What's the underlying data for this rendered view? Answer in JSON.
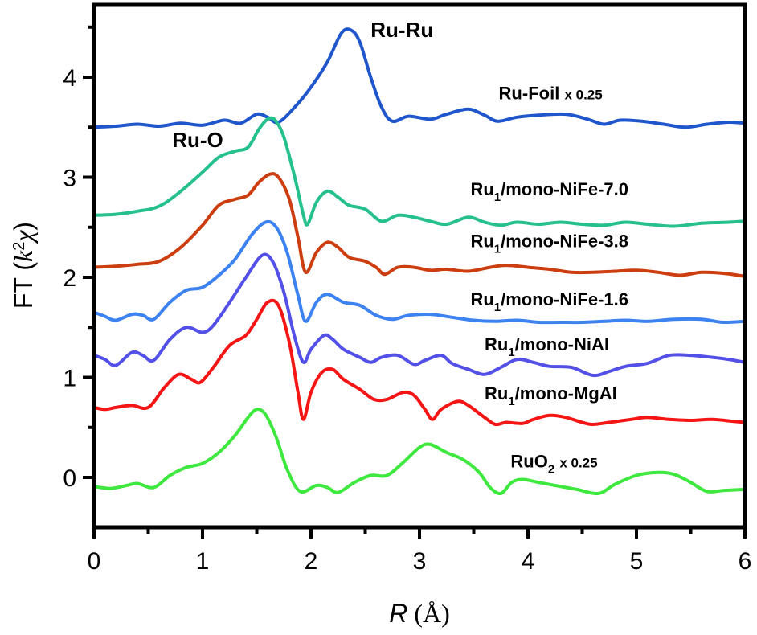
{
  "chart_data": {
    "type": "line",
    "title": "",
    "xlabel": "R (Å)",
    "ylabel": "FT (k²χ)",
    "xlim": [
      0,
      6
    ],
    "ylim": [
      -0.5,
      4.73
    ],
    "xticks": [
      0,
      1,
      2,
      3,
      4,
      5,
      6
    ],
    "yticks": [
      0,
      1,
      2,
      3,
      4
    ],
    "grid": false,
    "legend_position": "inline labels right",
    "annotations": [
      {
        "text": "Ru-Ru",
        "x": 2.55,
        "y": 4.4
      },
      {
        "text": "Ru-O",
        "x": 0.72,
        "y": 3.3
      }
    ],
    "series": [
      {
        "name": "Ru-Foil x 0.25",
        "label_main": "Ru-Foil",
        "label_sub": "",
        "label_suffix": " x 0.25",
        "color": "#1f56cc",
        "label_pos": [
          3.73,
          3.78
        ],
        "points": [
          [
            0,
            3.5
          ],
          [
            0.2,
            3.51
          ],
          [
            0.4,
            3.53
          ],
          [
            0.6,
            3.51
          ],
          [
            0.8,
            3.54
          ],
          [
            1.0,
            3.52
          ],
          [
            1.2,
            3.57
          ],
          [
            1.35,
            3.54
          ],
          [
            1.5,
            3.63
          ],
          [
            1.6,
            3.6
          ],
          [
            1.7,
            3.55
          ],
          [
            1.85,
            3.7
          ],
          [
            2.0,
            3.9
          ],
          [
            2.15,
            4.15
          ],
          [
            2.28,
            4.44
          ],
          [
            2.37,
            4.47
          ],
          [
            2.45,
            4.35
          ],
          [
            2.55,
            4.0
          ],
          [
            2.65,
            3.7
          ],
          [
            2.75,
            3.56
          ],
          [
            2.9,
            3.61
          ],
          [
            3.1,
            3.58
          ],
          [
            3.25,
            3.63
          ],
          [
            3.45,
            3.68
          ],
          [
            3.6,
            3.62
          ],
          [
            3.72,
            3.56
          ],
          [
            3.9,
            3.6
          ],
          [
            4.1,
            3.62
          ],
          [
            4.35,
            3.63
          ],
          [
            4.55,
            3.58
          ],
          [
            4.7,
            3.53
          ],
          [
            4.85,
            3.57
          ],
          [
            5.05,
            3.56
          ],
          [
            5.25,
            3.53
          ],
          [
            5.45,
            3.5
          ],
          [
            5.65,
            3.53
          ],
          [
            5.85,
            3.55
          ],
          [
            6.0,
            3.54
          ]
        ]
      },
      {
        "name": "Ru1/mono-NiFe-7.0",
        "label_main": "Ru",
        "label_sub": "1",
        "label_suffix": "/mono-NiFe-7.0",
        "color": "#25c08c",
        "label_pos": [
          3.47,
          2.82
        ],
        "points": [
          [
            0,
            2.62
          ],
          [
            0.2,
            2.63
          ],
          [
            0.4,
            2.66
          ],
          [
            0.6,
            2.71
          ],
          [
            0.8,
            2.86
          ],
          [
            1.0,
            3.05
          ],
          [
            1.15,
            3.2
          ],
          [
            1.3,
            3.26
          ],
          [
            1.42,
            3.3
          ],
          [
            1.52,
            3.48
          ],
          [
            1.6,
            3.58
          ],
          [
            1.67,
            3.57
          ],
          [
            1.75,
            3.4
          ],
          [
            1.85,
            3.0
          ],
          [
            1.93,
            2.62
          ],
          [
            1.97,
            2.53
          ],
          [
            2.05,
            2.75
          ],
          [
            2.15,
            2.86
          ],
          [
            2.25,
            2.8
          ],
          [
            2.35,
            2.72
          ],
          [
            2.5,
            2.68
          ],
          [
            2.65,
            2.56
          ],
          [
            2.8,
            2.62
          ],
          [
            2.95,
            2.6
          ],
          [
            3.1,
            2.56
          ],
          [
            3.25,
            2.53
          ],
          [
            3.45,
            2.6
          ],
          [
            3.6,
            2.55
          ],
          [
            3.75,
            2.52
          ],
          [
            3.9,
            2.55
          ],
          [
            4.1,
            2.53
          ],
          [
            4.3,
            2.55
          ],
          [
            4.5,
            2.53
          ],
          [
            4.7,
            2.52
          ],
          [
            4.9,
            2.55
          ],
          [
            5.1,
            2.53
          ],
          [
            5.35,
            2.51
          ],
          [
            5.6,
            2.54
          ],
          [
            5.85,
            2.55
          ],
          [
            6.0,
            2.56
          ]
        ]
      },
      {
        "name": "Ru1/mono-NiFe-3.8",
        "label_main": "Ru",
        "label_sub": "1",
        "label_suffix": "/mono-NiFe-3.8",
        "color": "#cc3d10",
        "label_pos": [
          3.47,
          2.3
        ],
        "points": [
          [
            0,
            2.1
          ],
          [
            0.2,
            2.11
          ],
          [
            0.4,
            2.13
          ],
          [
            0.6,
            2.16
          ],
          [
            0.8,
            2.3
          ],
          [
            1.0,
            2.52
          ],
          [
            1.15,
            2.72
          ],
          [
            1.3,
            2.78
          ],
          [
            1.42,
            2.82
          ],
          [
            1.52,
            2.95
          ],
          [
            1.62,
            3.03
          ],
          [
            1.7,
            3.0
          ],
          [
            1.8,
            2.78
          ],
          [
            1.88,
            2.4
          ],
          [
            1.95,
            2.05
          ],
          [
            2.05,
            2.25
          ],
          [
            2.15,
            2.35
          ],
          [
            2.25,
            2.3
          ],
          [
            2.35,
            2.2
          ],
          [
            2.5,
            2.16
          ],
          [
            2.6,
            2.1
          ],
          [
            2.68,
            2.03
          ],
          [
            2.8,
            2.1
          ],
          [
            2.95,
            2.1
          ],
          [
            3.1,
            2.07
          ],
          [
            3.25,
            2.08
          ],
          [
            3.45,
            2.06
          ],
          [
            3.65,
            2.1
          ],
          [
            3.8,
            2.12
          ],
          [
            4.0,
            2.1
          ],
          [
            4.2,
            2.08
          ],
          [
            4.4,
            2.05
          ],
          [
            4.6,
            2.05
          ],
          [
            4.8,
            2.06
          ],
          [
            5.0,
            2.07
          ],
          [
            5.2,
            2.05
          ],
          [
            5.4,
            2.02
          ],
          [
            5.6,
            2.05
          ],
          [
            5.8,
            2.04
          ],
          [
            6.0,
            2.01
          ]
        ]
      },
      {
        "name": "Ru1/mono-NiFe-1.6",
        "label_main": "Ru",
        "label_sub": "1",
        "label_suffix": "/mono-NiFe-1.6",
        "color": "#3c82f0",
        "label_pos": [
          3.47,
          1.72
        ],
        "points": [
          [
            0,
            1.65
          ],
          [
            0.1,
            1.61
          ],
          [
            0.2,
            1.57
          ],
          [
            0.35,
            1.63
          ],
          [
            0.45,
            1.62
          ],
          [
            0.55,
            1.58
          ],
          [
            0.7,
            1.75
          ],
          [
            0.85,
            1.87
          ],
          [
            1.0,
            1.9
          ],
          [
            1.15,
            2.02
          ],
          [
            1.3,
            2.18
          ],
          [
            1.45,
            2.42
          ],
          [
            1.58,
            2.55
          ],
          [
            1.68,
            2.5
          ],
          [
            1.78,
            2.25
          ],
          [
            1.88,
            1.82
          ],
          [
            1.95,
            1.56
          ],
          [
            2.05,
            1.75
          ],
          [
            2.15,
            1.83
          ],
          [
            2.3,
            1.75
          ],
          [
            2.45,
            1.72
          ],
          [
            2.6,
            1.62
          ],
          [
            2.75,
            1.58
          ],
          [
            2.9,
            1.62
          ],
          [
            3.1,
            1.63
          ],
          [
            3.3,
            1.6
          ],
          [
            3.5,
            1.57
          ],
          [
            3.7,
            1.56
          ],
          [
            3.9,
            1.57
          ],
          [
            4.1,
            1.55
          ],
          [
            4.3,
            1.55
          ],
          [
            4.5,
            1.55
          ],
          [
            4.7,
            1.56
          ],
          [
            4.9,
            1.57
          ],
          [
            5.1,
            1.56
          ],
          [
            5.35,
            1.58
          ],
          [
            5.6,
            1.58
          ],
          [
            5.8,
            1.55
          ],
          [
            6.0,
            1.56
          ]
        ]
      },
      {
        "name": "Ru1/mono-NiAl",
        "label_main": "Ru",
        "label_sub": "1",
        "label_suffix": "/mono-NiAl",
        "color": "#5350e8",
        "label_pos": [
          3.6,
          1.27
        ],
        "points": [
          [
            0,
            1.22
          ],
          [
            0.1,
            1.18
          ],
          [
            0.2,
            1.12
          ],
          [
            0.35,
            1.25
          ],
          [
            0.45,
            1.22
          ],
          [
            0.55,
            1.17
          ],
          [
            0.7,
            1.38
          ],
          [
            0.85,
            1.5
          ],
          [
            1.0,
            1.45
          ],
          [
            1.1,
            1.52
          ],
          [
            1.25,
            1.75
          ],
          [
            1.4,
            2.0
          ],
          [
            1.55,
            2.22
          ],
          [
            1.65,
            2.15
          ],
          [
            1.75,
            1.85
          ],
          [
            1.85,
            1.4
          ],
          [
            1.93,
            1.15
          ],
          [
            2.0,
            1.28
          ],
          [
            2.12,
            1.42
          ],
          [
            2.2,
            1.38
          ],
          [
            2.3,
            1.28
          ],
          [
            2.45,
            1.2
          ],
          [
            2.55,
            1.15
          ],
          [
            2.65,
            1.2
          ],
          [
            2.8,
            1.22
          ],
          [
            2.95,
            1.13
          ],
          [
            3.05,
            1.17
          ],
          [
            3.2,
            1.22
          ],
          [
            3.3,
            1.14
          ],
          [
            3.45,
            1.08
          ],
          [
            3.6,
            1.03
          ],
          [
            3.75,
            1.1
          ],
          [
            3.9,
            1.18
          ],
          [
            4.05,
            1.15
          ],
          [
            4.2,
            1.11
          ],
          [
            4.4,
            1.1
          ],
          [
            4.6,
            1.02
          ],
          [
            4.75,
            1.06
          ],
          [
            4.9,
            1.11
          ],
          [
            5.1,
            1.14
          ],
          [
            5.3,
            1.22
          ],
          [
            5.5,
            1.22
          ],
          [
            5.7,
            1.2
          ],
          [
            5.85,
            1.18
          ],
          [
            6.0,
            1.15
          ]
        ]
      },
      {
        "name": "Ru1/mono-MgAl",
        "label_main": "Ru",
        "label_sub": "1",
        "label_suffix": "/mono-MgAl",
        "color": "#f51515",
        "label_pos": [
          3.6,
          0.78
        ],
        "points": [
          [
            0,
            0.7
          ],
          [
            0.1,
            0.68
          ],
          [
            0.2,
            0.7
          ],
          [
            0.35,
            0.72
          ],
          [
            0.5,
            0.7
          ],
          [
            0.65,
            0.9
          ],
          [
            0.78,
            1.03
          ],
          [
            0.9,
            0.98
          ],
          [
            0.98,
            0.95
          ],
          [
            1.1,
            1.1
          ],
          [
            1.25,
            1.32
          ],
          [
            1.4,
            1.42
          ],
          [
            1.5,
            1.58
          ],
          [
            1.6,
            1.75
          ],
          [
            1.7,
            1.72
          ],
          [
            1.8,
            1.35
          ],
          [
            1.88,
            0.85
          ],
          [
            1.93,
            0.58
          ],
          [
            2.0,
            0.85
          ],
          [
            2.1,
            1.05
          ],
          [
            2.2,
            1.08
          ],
          [
            2.3,
            0.98
          ],
          [
            2.45,
            0.88
          ],
          [
            2.58,
            0.78
          ],
          [
            2.7,
            0.78
          ],
          [
            2.85,
            0.85
          ],
          [
            2.95,
            0.82
          ],
          [
            3.05,
            0.68
          ],
          [
            3.12,
            0.58
          ],
          [
            3.2,
            0.68
          ],
          [
            3.35,
            0.76
          ],
          [
            3.45,
            0.72
          ],
          [
            3.6,
            0.6
          ],
          [
            3.7,
            0.53
          ],
          [
            3.8,
            0.55
          ],
          [
            3.95,
            0.54
          ],
          [
            4.05,
            0.58
          ],
          [
            4.2,
            0.62
          ],
          [
            4.35,
            0.6
          ],
          [
            4.5,
            0.55
          ],
          [
            4.6,
            0.53
          ],
          [
            4.75,
            0.55
          ],
          [
            4.95,
            0.58
          ],
          [
            5.1,
            0.6
          ],
          [
            5.3,
            0.58
          ],
          [
            5.5,
            0.57
          ],
          [
            5.7,
            0.58
          ],
          [
            5.9,
            0.56
          ],
          [
            6.0,
            0.55
          ]
        ]
      },
      {
        "name": "RuO2 x 0.25",
        "label_main": "RuO",
        "label_sub": "2",
        "label_suffix": "  x 0.25",
        "color": "#3ee83e",
        "label_pos": [
          3.84,
          0.1
        ],
        "points": [
          [
            0,
            -0.09
          ],
          [
            0.15,
            -0.11
          ],
          [
            0.3,
            -0.08
          ],
          [
            0.4,
            -0.06
          ],
          [
            0.55,
            -0.1
          ],
          [
            0.7,
            0.02
          ],
          [
            0.85,
            0.1
          ],
          [
            1.0,
            0.14
          ],
          [
            1.15,
            0.25
          ],
          [
            1.3,
            0.42
          ],
          [
            1.42,
            0.6
          ],
          [
            1.5,
            0.68
          ],
          [
            1.58,
            0.63
          ],
          [
            1.68,
            0.4
          ],
          [
            1.78,
            0.08
          ],
          [
            1.9,
            -0.14
          ],
          [
            2.05,
            -0.08
          ],
          [
            2.15,
            -0.1
          ],
          [
            2.25,
            -0.15
          ],
          [
            2.4,
            -0.05
          ],
          [
            2.55,
            0.02
          ],
          [
            2.7,
            0.02
          ],
          [
            2.85,
            0.15
          ],
          [
            3.0,
            0.3
          ],
          [
            3.1,
            0.33
          ],
          [
            3.25,
            0.25
          ],
          [
            3.4,
            0.18
          ],
          [
            3.55,
            0.05
          ],
          [
            3.65,
            -0.1
          ],
          [
            3.75,
            -0.16
          ],
          [
            3.85,
            -0.05
          ],
          [
            3.95,
            -0.02
          ],
          [
            4.1,
            -0.05
          ],
          [
            4.25,
            -0.08
          ],
          [
            4.45,
            -0.12
          ],
          [
            4.65,
            -0.16
          ],
          [
            4.8,
            -0.07
          ],
          [
            5.0,
            0.02
          ],
          [
            5.2,
            0.05
          ],
          [
            5.35,
            0.03
          ],
          [
            5.5,
            -0.05
          ],
          [
            5.65,
            -0.14
          ],
          [
            5.8,
            -0.13
          ],
          [
            6.0,
            -0.12
          ]
        ]
      }
    ]
  }
}
